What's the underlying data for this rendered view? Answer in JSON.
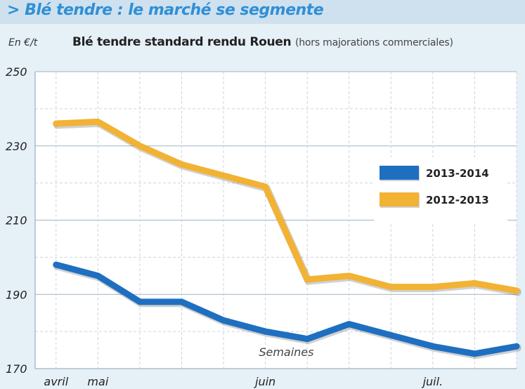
{
  "header": {
    "title": "> Blé tendre : le marché se segmente"
  },
  "chart_data": {
    "type": "line",
    "title": "Blé tendre standard rendu Rouen",
    "subtitle": "(hors majorations commerciales)",
    "ylabel": "En €/t",
    "annotation": "Semaines",
    "ylim": [
      170,
      250
    ],
    "yticks": [
      170,
      190,
      210,
      230,
      250
    ],
    "grid": true,
    "legend_position": "right",
    "x_tick_labels": [
      {
        "label": "avril",
        "x": 0
      },
      {
        "label": "mai",
        "x": 1
      },
      {
        "label": "juin",
        "x": 5
      },
      {
        "label": "juil.",
        "x": 9
      }
    ],
    "x_range": [
      -0.5,
      11
    ],
    "series": [
      {
        "name": "2013-2014",
        "color": "#1f6fc1",
        "x": [
          0,
          1,
          2,
          3,
          4,
          5,
          6,
          7,
          8,
          9,
          10,
          11
        ],
        "values": [
          198,
          195,
          188,
          188,
          183,
          180,
          178,
          182,
          179,
          176,
          174,
          176
        ]
      },
      {
        "name": "2012-2013",
        "color": "#f2b233",
        "x": [
          0,
          1,
          2,
          3,
          4,
          5,
          6,
          7,
          8,
          9,
          10,
          11
        ],
        "values": [
          236,
          236.5,
          230,
          225,
          222,
          219,
          194,
          195,
          192,
          192,
          193,
          191
        ]
      }
    ]
  }
}
